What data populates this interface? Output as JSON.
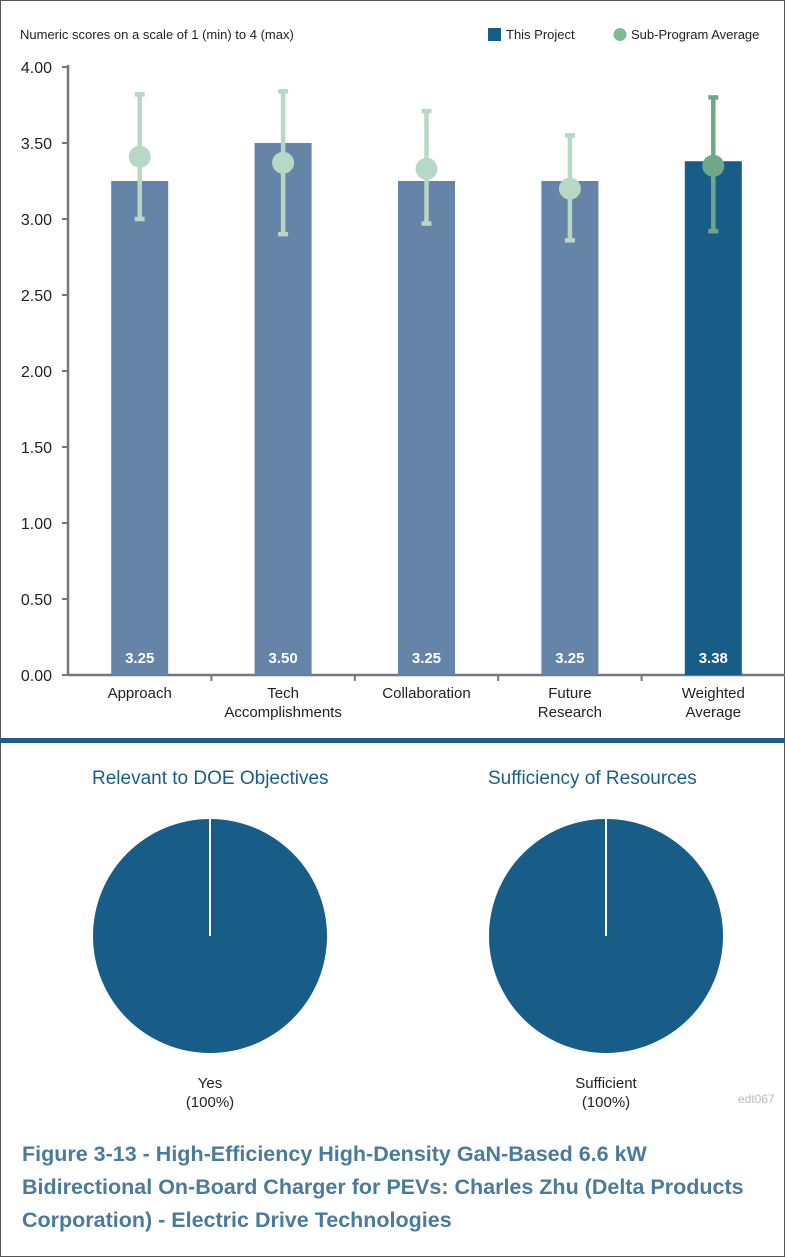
{
  "chart_data": [
    {
      "type": "bar",
      "subtitle": "Numeric scores on a scale of 1 (min) to 4 (max)",
      "categories": [
        "Approach",
        "Tech Accomplishments",
        "Collaboration",
        "Future Research",
        "Weighted Average"
      ],
      "category_lines": [
        [
          "Approach"
        ],
        [
          "Tech",
          "Accomplishments"
        ],
        [
          "Collaboration"
        ],
        [
          "Future",
          "Research"
        ],
        [
          "Weighted",
          "Average"
        ]
      ],
      "series": [
        {
          "name": "This Project",
          "values": [
            3.25,
            3.5,
            3.25,
            3.25,
            3.38
          ],
          "labels": [
            "3.25",
            "3.50",
            "3.25",
            "3.25",
            "3.38"
          ]
        },
        {
          "name": "Sub-Program Average",
          "values": [
            3.41,
            3.37,
            3.33,
            3.2,
            3.35
          ],
          "low": [
            3.0,
            2.9,
            2.97,
            2.86,
            2.92
          ],
          "high": [
            3.82,
            3.84,
            3.71,
            3.55,
            3.8
          ]
        }
      ],
      "ylim": [
        0,
        4
      ],
      "yticks": [
        "0.00",
        "0.50",
        "1.00",
        "1.50",
        "2.00",
        "2.50",
        "3.00",
        "3.50",
        "4.00"
      ],
      "legend_position": "top-right",
      "grid": false,
      "colors": {
        "bar": "#6683a8",
        "bar_highlight": "#175d87",
        "avg_marker": "#b8d8c6",
        "avg_marker_highlight": "#6ea888",
        "errorbar": "#b8d8c6",
        "errorbar_highlight": "#6ea888",
        "legend_project": "#175d87",
        "legend_average": "#7dbb93"
      }
    },
    {
      "type": "pie",
      "title": "Relevant to DOE Objectives",
      "categories": [
        "Yes"
      ],
      "values": [
        100
      ],
      "slice_label": "Yes",
      "percent_label": "(100%)",
      "colors": [
        "#175d87"
      ]
    },
    {
      "type": "pie",
      "title": "Sufficiency of  Resources",
      "categories": [
        "Sufficient"
      ],
      "values": [
        100
      ],
      "slice_label": "Sufficient",
      "percent_label": "(100%)",
      "colors": [
        "#175d87"
      ]
    }
  ],
  "footer_code": "edt067",
  "caption": "Figure 3-13 - High-Efficiency High-Density GaN-Based 6.6 kW Bidirectional On-Board Charger for PEVs: Charles Zhu (Delta Products Corporation) - Electric Drive Technologies"
}
